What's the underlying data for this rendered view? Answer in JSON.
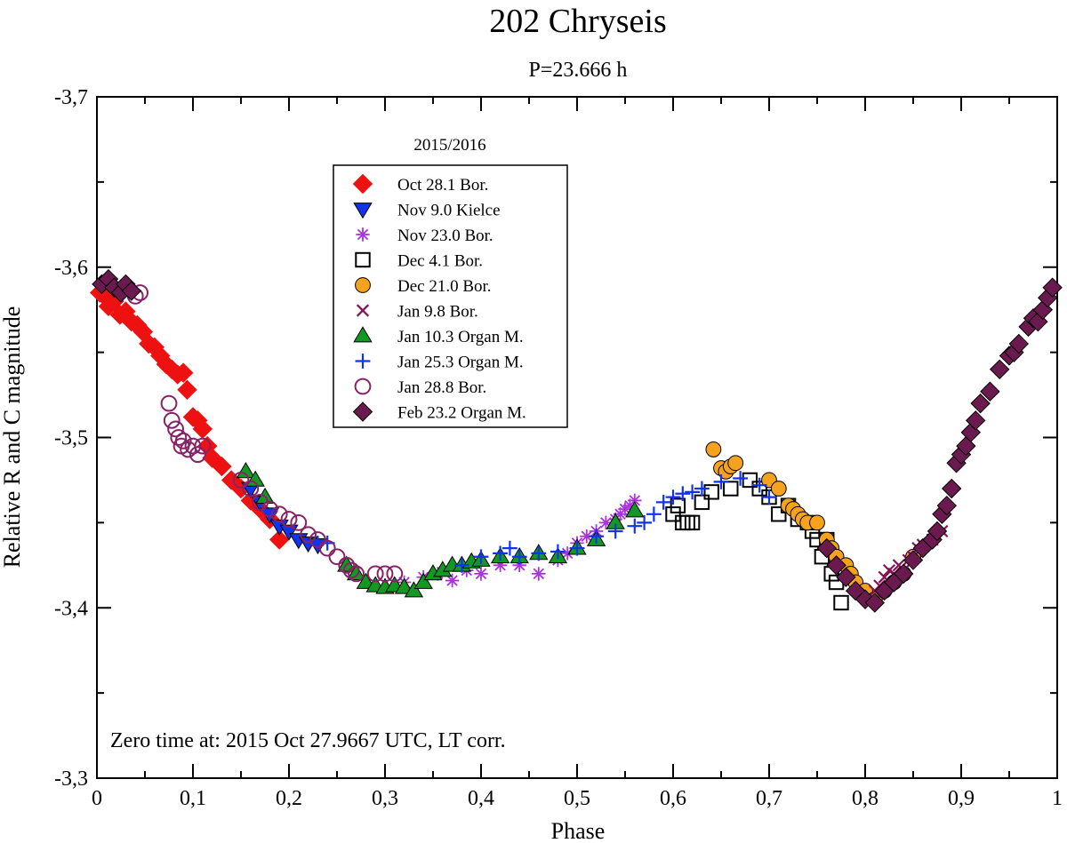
{
  "chart_data": {
    "type": "scatter",
    "title": "202 Chryseis",
    "subtitle": "P=23.666 h",
    "xlabel": "Phase",
    "ylabel": "Relative R and C magnitude",
    "xlim": [
      0,
      1
    ],
    "ylim": [
      -3.3,
      -3.7
    ],
    "x_ticks": [
      "0",
      "0,1",
      "0,2",
      "0,3",
      "0,4",
      "0,5",
      "0,6",
      "0,7",
      "0,8",
      "0,9",
      "1"
    ],
    "y_ticks": [
      "-3,7",
      "-3,6",
      "-3,5",
      "-3,4",
      "-3,3"
    ],
    "legend_title": "2015/2016",
    "legend_position": "top-left",
    "annotation": "Zero time at: 2015 Oct 27.9667 UTC, LT corr.",
    "series": [
      {
        "name": "Oct 28.1 Bor.",
        "marker": "diamond",
        "color": "#ee1111",
        "filled": true,
        "x": [
          0.003,
          0.008,
          0.012,
          0.018,
          0.024,
          0.03,
          0.036,
          0.042,
          0.048,
          0.054,
          0.06,
          0.066,
          0.072,
          0.078,
          0.084,
          0.09,
          0.094,
          0.1,
          0.105,
          0.11,
          0.115,
          0.12,
          0.13,
          0.14,
          0.15,
          0.16,
          0.17,
          0.18,
          0.19
        ],
        "y": [
          -3.585,
          -3.583,
          -3.577,
          -3.58,
          -3.572,
          -3.574,
          -3.568,
          -3.566,
          -3.562,
          -3.555,
          -3.553,
          -3.548,
          -3.543,
          -3.54,
          -3.537,
          -3.538,
          -3.528,
          -3.512,
          -3.51,
          -3.505,
          -3.495,
          -3.488,
          -3.483,
          -3.475,
          -3.47,
          -3.463,
          -3.458,
          -3.452,
          -3.44
        ]
      },
      {
        "name": "Nov 9.0 Kielce",
        "marker": "triangle-down",
        "color": "#1133ee",
        "filled": true,
        "x": [
          0.16,
          0.17,
          0.18,
          0.19,
          0.2,
          0.21,
          0.22,
          0.23
        ],
        "y": [
          -3.47,
          -3.462,
          -3.455,
          -3.448,
          -3.445,
          -3.44,
          -3.438,
          -3.437
        ]
      },
      {
        "name": "Nov 23.0 Bor.",
        "marker": "asterisk",
        "color": "#aa33dd",
        "filled": false,
        "x": [
          0.32,
          0.34,
          0.355,
          0.37,
          0.385,
          0.4,
          0.42,
          0.44,
          0.46,
          0.48,
          0.49,
          0.5,
          0.51,
          0.52,
          0.53,
          0.54,
          0.545,
          0.55,
          0.555,
          0.56
        ],
        "y": [
          -3.415,
          -3.418,
          -3.42,
          -3.416,
          -3.422,
          -3.42,
          -3.425,
          -3.425,
          -3.42,
          -3.428,
          -3.432,
          -3.438,
          -3.442,
          -3.445,
          -3.45,
          -3.452,
          -3.455,
          -3.458,
          -3.46,
          -3.463
        ]
      },
      {
        "name": "Dec 4.1 Bor.",
        "marker": "square",
        "color": "#000000",
        "filled": false,
        "x": [
          0.6,
          0.605,
          0.61,
          0.615,
          0.62,
          0.63,
          0.64,
          0.66,
          0.68,
          0.69,
          0.7,
          0.71,
          0.72,
          0.73,
          0.74,
          0.745,
          0.75,
          0.755,
          0.76,
          0.765,
          0.77,
          0.775
        ],
        "y": [
          -3.455,
          -3.46,
          -3.45,
          -3.45,
          -3.45,
          -3.462,
          -3.468,
          -3.47,
          -3.475,
          -3.47,
          -3.465,
          -3.455,
          -3.46,
          -3.452,
          -3.45,
          -3.445,
          -3.44,
          -3.43,
          -3.44,
          -3.42,
          -3.415,
          -3.403
        ]
      },
      {
        "name": "Dec 21.0 Bor.",
        "marker": "circle",
        "color": "#f5a31e",
        "filled": true,
        "x": [
          0.642,
          0.65,
          0.655,
          0.66,
          0.665,
          0.7,
          0.71,
          0.72,
          0.725,
          0.73,
          0.735,
          0.74,
          0.75,
          0.76,
          0.765,
          0.77,
          0.78,
          0.785,
          0.79,
          0.8,
          0.81,
          0.82,
          0.83,
          0.84,
          0.85
        ],
        "y": [
          -3.493,
          -3.482,
          -3.48,
          -3.483,
          -3.485,
          -3.475,
          -3.47,
          -3.46,
          -3.458,
          -3.455,
          -3.452,
          -3.45,
          -3.45,
          -3.44,
          -3.435,
          -3.43,
          -3.425,
          -3.42,
          -3.415,
          -3.41,
          -3.405,
          -3.41,
          -3.415,
          -3.42,
          -3.43
        ]
      },
      {
        "name": "Jan 9.8 Bor.",
        "marker": "x",
        "color": "#881155",
        "filled": false,
        "x": [
          0.81,
          0.815,
          0.82,
          0.825,
          0.83,
          0.835,
          0.84,
          0.845,
          0.85,
          0.855,
          0.86,
          0.87,
          0.88
        ],
        "y": [
          -3.41,
          -3.413,
          -3.418,
          -3.422,
          -3.42,
          -3.425,
          -3.422,
          -3.428,
          -3.43,
          -3.435,
          -3.437,
          -3.44,
          -3.445
        ]
      },
      {
        "name": "Jan 10.3 Organ M.",
        "marker": "triangle-up",
        "color": "#119922",
        "filled": true,
        "x": [
          0.155,
          0.165,
          0.175,
          0.26,
          0.27,
          0.28,
          0.29,
          0.3,
          0.31,
          0.32,
          0.33,
          0.34,
          0.35,
          0.36,
          0.37,
          0.38,
          0.39,
          0.4,
          0.42,
          0.44,
          0.46,
          0.48,
          0.5,
          0.52,
          0.54,
          0.56
        ],
        "y": [
          -3.48,
          -3.475,
          -3.465,
          -3.425,
          -3.42,
          -3.415,
          -3.413,
          -3.412,
          -3.413,
          -3.412,
          -3.41,
          -3.415,
          -3.42,
          -3.422,
          -3.425,
          -3.425,
          -3.427,
          -3.428,
          -3.43,
          -3.43,
          -3.432,
          -3.43,
          -3.435,
          -3.44,
          -3.45,
          -3.457
        ]
      },
      {
        "name": "Jan 25.3 Organ M.",
        "marker": "plus",
        "color": "#1133ee",
        "filled": false,
        "x": [
          0.23,
          0.24,
          0.38,
          0.4,
          0.42,
          0.43,
          0.44,
          0.46,
          0.48,
          0.5,
          0.52,
          0.54,
          0.56,
          0.57,
          0.58,
          0.59,
          0.6,
          0.61,
          0.62,
          0.63,
          0.65,
          0.67,
          0.69,
          0.7
        ],
        "y": [
          -3.438,
          -3.438,
          -3.425,
          -3.43,
          -3.432,
          -3.435,
          -3.43,
          -3.432,
          -3.433,
          -3.435,
          -3.442,
          -3.445,
          -3.448,
          -3.45,
          -3.455,
          -3.462,
          -3.465,
          -3.467,
          -3.468,
          -3.47,
          -3.474,
          -3.476,
          -3.472,
          -3.465
        ]
      },
      {
        "name": "Jan 28.8 Bor.",
        "marker": "circle",
        "color": "#882266",
        "filled": false,
        "x": [
          0.04,
          0.045,
          0.075,
          0.078,
          0.082,
          0.085,
          0.088,
          0.09,
          0.095,
          0.1,
          0.105,
          0.11,
          0.15,
          0.16,
          0.17,
          0.18,
          0.19,
          0.2,
          0.21,
          0.22,
          0.23,
          0.24,
          0.25,
          0.26,
          0.265,
          0.27,
          0.29,
          0.3,
          0.31
        ],
        "y": [
          -3.583,
          -3.585,
          -3.52,
          -3.51,
          -3.505,
          -3.5,
          -3.495,
          -3.498,
          -3.493,
          -3.495,
          -3.49,
          -3.495,
          -3.475,
          -3.47,
          -3.462,
          -3.458,
          -3.455,
          -3.452,
          -3.45,
          -3.443,
          -3.44,
          -3.435,
          -3.43,
          -3.425,
          -3.422,
          -3.42,
          -3.42,
          -3.42,
          -3.42
        ]
      },
      {
        "name": "Feb 23.2 Organ M.",
        "marker": "diamond",
        "color": "#6b1a4f",
        "filled": true,
        "x": [
          0.005,
          0.012,
          0.018,
          0.025,
          0.03,
          0.036,
          0.76,
          0.77,
          0.78,
          0.79,
          0.8,
          0.81,
          0.82,
          0.83,
          0.84,
          0.85,
          0.86,
          0.87,
          0.875,
          0.88,
          0.885,
          0.89,
          0.895,
          0.9,
          0.905,
          0.91,
          0.915,
          0.92,
          0.93,
          0.94,
          0.95,
          0.955,
          0.96,
          0.97,
          0.975,
          0.98,
          0.985,
          0.99,
          0.995
        ],
        "y": [
          -3.59,
          -3.593,
          -3.588,
          -3.585,
          -3.59,
          -3.586,
          -3.435,
          -3.425,
          -3.418,
          -3.41,
          -3.405,
          -3.403,
          -3.41,
          -3.415,
          -3.42,
          -3.428,
          -3.435,
          -3.44,
          -3.445,
          -3.455,
          -3.46,
          -3.47,
          -3.485,
          -3.49,
          -3.495,
          -3.503,
          -3.51,
          -3.52,
          -3.527,
          -3.54,
          -3.548,
          -3.55,
          -3.555,
          -3.565,
          -3.57,
          -3.568,
          -3.575,
          -3.582,
          -3.588
        ]
      }
    ]
  }
}
